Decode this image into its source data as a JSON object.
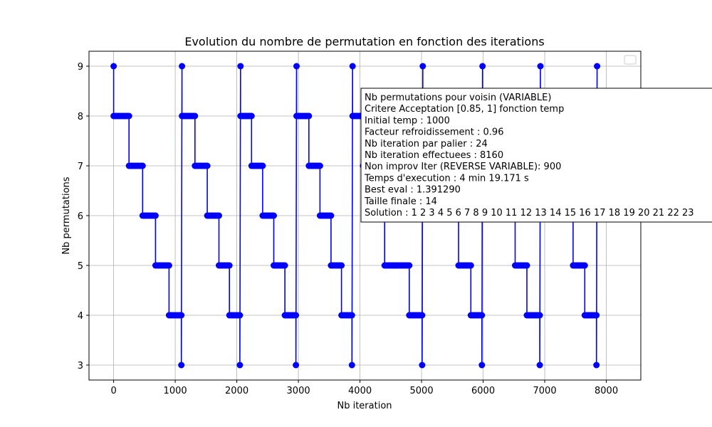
{
  "chart_data": {
    "type": "line",
    "title": "Evolution du nombre de permutation en fonction des iterations",
    "xlabel": "Nb iteration",
    "ylabel": "Nb permutations",
    "xlim": [
      -400,
      8560
    ],
    "ylim": [
      2.7,
      9.3
    ],
    "xticks": [
      0,
      1000,
      2000,
      3000,
      4000,
      5000,
      6000,
      7000,
      8000
    ],
    "yticks": [
      3,
      4,
      5,
      6,
      7,
      8,
      9
    ],
    "grid": true,
    "legend_position": "top-right",
    "color": "#0000ff",
    "series": [
      {
        "points": [
          [
            0,
            9
          ],
          [
            0,
            8
          ],
          [
            250,
            8
          ],
          [
            250,
            7
          ],
          [
            470,
            7
          ],
          [
            470,
            6
          ],
          [
            680,
            6
          ],
          [
            680,
            5
          ],
          [
            900,
            5
          ],
          [
            900,
            4
          ],
          [
            1100,
            4
          ],
          [
            1100,
            3
          ],
          [
            1110,
            9
          ],
          [
            1110,
            8
          ],
          [
            1320,
            8
          ],
          [
            1320,
            7
          ],
          [
            1520,
            7
          ],
          [
            1520,
            6
          ],
          [
            1710,
            6
          ],
          [
            1710,
            5
          ],
          [
            1880,
            5
          ],
          [
            1880,
            4
          ],
          [
            2050,
            4
          ],
          [
            2050,
            3
          ],
          [
            2060,
            9
          ],
          [
            2060,
            8
          ],
          [
            2240,
            8
          ],
          [
            2240,
            7
          ],
          [
            2420,
            7
          ],
          [
            2420,
            6
          ],
          [
            2600,
            6
          ],
          [
            2600,
            5
          ],
          [
            2780,
            5
          ],
          [
            2780,
            4
          ],
          [
            2960,
            4
          ],
          [
            2960,
            3
          ],
          [
            2970,
            9
          ],
          [
            2970,
            8
          ],
          [
            3170,
            8
          ],
          [
            3170,
            7
          ],
          [
            3350,
            7
          ],
          [
            3350,
            6
          ],
          [
            3530,
            6
          ],
          [
            3530,
            5
          ],
          [
            3700,
            5
          ],
          [
            3700,
            4
          ],
          [
            3870,
            4
          ],
          [
            3870,
            3
          ],
          [
            3880,
            9
          ],
          [
            3880,
            8
          ],
          [
            4050,
            8
          ],
          [
            4050,
            7
          ],
          [
            4230,
            7
          ],
          [
            4230,
            6
          ],
          [
            4400,
            6
          ],
          [
            4400,
            5
          ],
          [
            4560,
            5
          ],
          [
            4560,
            5
          ],
          [
            4800,
            5
          ],
          [
            4800,
            4
          ],
          [
            5010,
            4
          ],
          [
            5010,
            3
          ],
          [
            5020,
            9
          ],
          [
            5020,
            8
          ],
          [
            5230,
            8
          ],
          [
            5230,
            7
          ],
          [
            5420,
            7
          ],
          [
            5420,
            6
          ],
          [
            5600,
            6
          ],
          [
            5600,
            5
          ],
          [
            5800,
            5
          ],
          [
            5800,
            4
          ],
          [
            5980,
            4
          ],
          [
            5980,
            3
          ],
          [
            5990,
            9
          ],
          [
            5990,
            8
          ],
          [
            6150,
            8
          ],
          [
            6150,
            7
          ],
          [
            6330,
            7
          ],
          [
            6330,
            6
          ],
          [
            6520,
            6
          ],
          [
            6520,
            5
          ],
          [
            6710,
            5
          ],
          [
            6710,
            4
          ],
          [
            6920,
            4
          ],
          [
            6920,
            3
          ],
          [
            6930,
            9
          ],
          [
            6930,
            8
          ],
          [
            7100,
            8
          ],
          [
            7100,
            7
          ],
          [
            7280,
            7
          ],
          [
            7280,
            6
          ],
          [
            7460,
            6
          ],
          [
            7460,
            5
          ],
          [
            7650,
            5
          ],
          [
            7650,
            4
          ],
          [
            7840,
            4
          ],
          [
            7840,
            3
          ],
          [
            7850,
            9
          ]
        ]
      }
    ],
    "annotation": [
      "Nb permutations pour voisin (VARIABLE)",
      "Critere Acceptation [0.85, 1] fonction temp",
      "Initial temp : 1000",
      "Facteur refroidissement : 0.96",
      "Nb iteration par palier : 24",
      "Nb iteration effectuees : 8160",
      "Non improv Iter (REVERSE VARIABLE): 900",
      "Temps d'execution : 4 min 19.171 s",
      "Best eval : 1.391290",
      "Taille finale : 14",
      "Solution : 1 2 3 4 5 6 7 8 9 10 11 12 13 14 15 16 17 18 19 20 21 22 23"
    ]
  }
}
